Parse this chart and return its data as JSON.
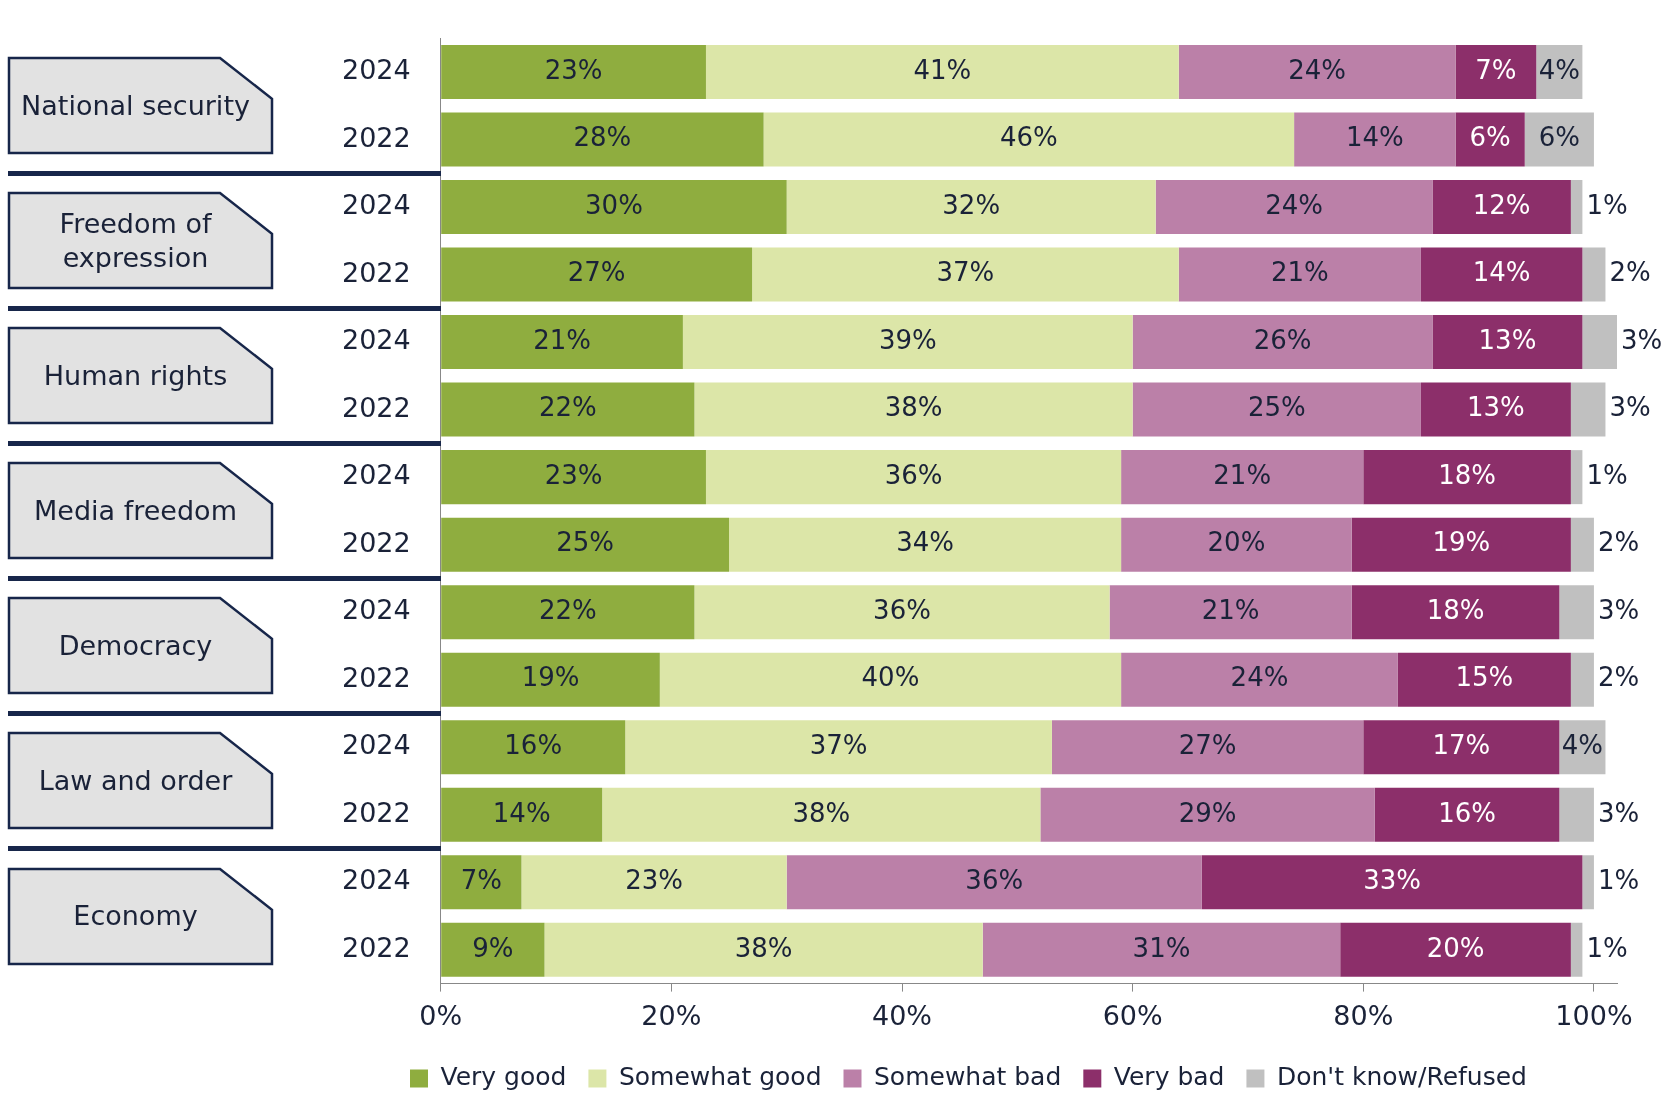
{
  "chart_data": {
    "type": "bar",
    "orientation": "horizontal",
    "stacked": true,
    "categories": [
      "2024",
      "2022",
      "2024",
      "2022",
      "2024",
      "2022",
      "2024",
      "2022",
      "2024",
      "2022",
      "2024",
      "2022",
      "2024",
      "2022"
    ],
    "annotations": [
      "National security",
      "Freedom of expression",
      "Human rights",
      "Media freedom",
      "Democracy",
      "Law and order",
      "Economy"
    ],
    "series": [
      {
        "name": "Very good",
        "color": "#8fad3f",
        "values": [
          23,
          28,
          30,
          27,
          21,
          22,
          23,
          25,
          22,
          19,
          16,
          14,
          7,
          9
        ],
        "value_labels": [
          "23%",
          "28%",
          "30%",
          "27%",
          "21%",
          "22%",
          "23%",
          "25%",
          "22%",
          "19%",
          "16%",
          "14%",
          "7%",
          "9%"
        ]
      },
      {
        "name": "Somewhat good",
        "color": "#dce6a8",
        "values": [
          41,
          46,
          32,
          37,
          39,
          38,
          36,
          34,
          36,
          40,
          37,
          38,
          23,
          38
        ],
        "value_labels": [
          "41%",
          "46%",
          "32%",
          "37%",
          "39%",
          "38%",
          "36%",
          "34%",
          "36%",
          "40%",
          "37%",
          "38%",
          "23%",
          "38%"
        ]
      },
      {
        "name": "Somewhat bad",
        "color": "#bb80a8",
        "values": [
          24,
          14,
          24,
          21,
          26,
          25,
          21,
          20,
          21,
          24,
          27,
          29,
          36,
          31
        ],
        "value_labels": [
          "24%",
          "14%",
          "24%",
          "21%",
          "26%",
          "25%",
          "21%",
          "20%",
          "21%",
          "24%",
          "27%",
          "29%",
          "36%",
          "31%"
        ]
      },
      {
        "name": "Very bad",
        "color": "#8c2f6a",
        "values": [
          7,
          6,
          12,
          14,
          13,
          13,
          18,
          19,
          18,
          15,
          17,
          16,
          33,
          20
        ],
        "value_labels": [
          "7%",
          "6%",
          "12%",
          "14%",
          "13%",
          "13%",
          "18%",
          "19%",
          "18%",
          "15%",
          "17%",
          "16%",
          "33%",
          "20%"
        ]
      },
      {
        "name": "Don't know/Refused",
        "color": "#c0c0c0",
        "values": [
          4,
          6,
          1,
          2,
          3,
          3,
          1,
          2,
          3,
          2,
          4,
          3,
          1,
          1
        ],
        "value_labels": [
          "4%",
          "6%",
          "1%",
          "2%",
          "3%",
          "3%",
          "1%",
          "2%",
          "3%",
          "2%",
          "4%",
          "3%",
          "1%",
          "1%"
        ]
      }
    ],
    "xlim": [
      0,
      102
    ],
    "xticks": [
      {
        "value": 0,
        "label": "0%"
      },
      {
        "value": 20,
        "label": "20%"
      },
      {
        "value": 40,
        "label": "40%"
      },
      {
        "value": 60,
        "label": "60%"
      },
      {
        "value": 80,
        "label": "80%"
      },
      {
        "value": 100,
        "label": "100%"
      }
    ],
    "grid": false,
    "legend": "bottom"
  }
}
